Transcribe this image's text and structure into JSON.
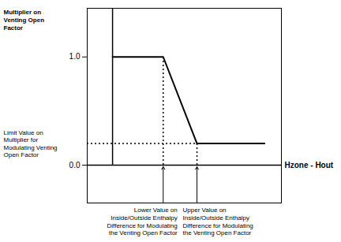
{
  "chart_data": {
    "type": "line",
    "x": [
      0,
      3,
      5,
      9
    ],
    "values": [
      1.0,
      1.0,
      0.2,
      0.2
    ],
    "color": "#000000",
    "xlim": [
      -1.5,
      10
    ],
    "ylim": [
      -0.35,
      1.45
    ],
    "yticks": [
      {
        "value": 1.0,
        "label": "1.0"
      },
      {
        "value": 0.0,
        "label": "0.0"
      }
    ],
    "tick_labels": "y",
    "grid": false,
    "xlabel": "Hzone - Hout",
    "ylabel": "Multiplier on\nVenting Open\nFactor",
    "annotations": [
      {
        "text": "Limit Value on\nMultiplier for\nModulating Venting\nOpen Factor",
        "y": 0.2
      },
      {
        "text": "Lower Value on\nInside/Outside Enthalpy\nDifference for Modulating\nthe Venting Open Factor",
        "x": 3
      },
      {
        "text": "Upper Value on\nInside/Outside Enthalpy\nDifference for Modulating\nthe Venting Open Factor",
        "x": 5
      }
    ]
  }
}
